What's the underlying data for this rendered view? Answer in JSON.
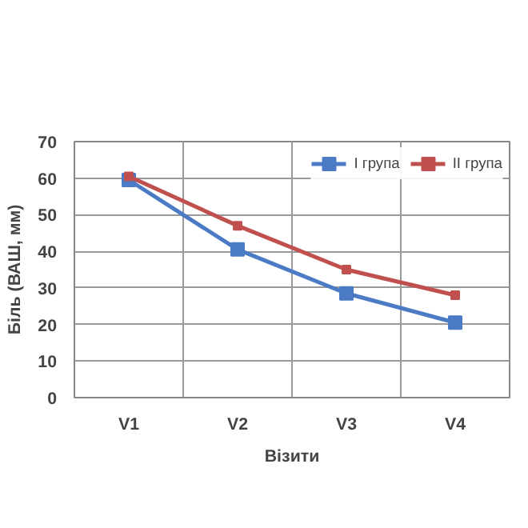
{
  "chart_data": {
    "type": "line",
    "xlabel": "Візити",
    "ylabel": "Біль (ВАШ, мм)",
    "categories": [
      "V1",
      "V2",
      "V3",
      "V4"
    ],
    "series": [
      {
        "name": "I група",
        "color": "#4a7bc4",
        "values": [
          59.5,
          40.5,
          28.5,
          20.5
        ]
      },
      {
        "name": "II група",
        "color": "#c0504d",
        "values": [
          60.5,
          47,
          35,
          28
        ]
      }
    ],
    "ylim": [
      0,
      70
    ],
    "yticks": [
      0,
      10,
      20,
      30,
      40,
      50,
      60,
      70
    ],
    "grid": true,
    "legend": "top right",
    "marker": "square",
    "line_style": "solid"
  }
}
